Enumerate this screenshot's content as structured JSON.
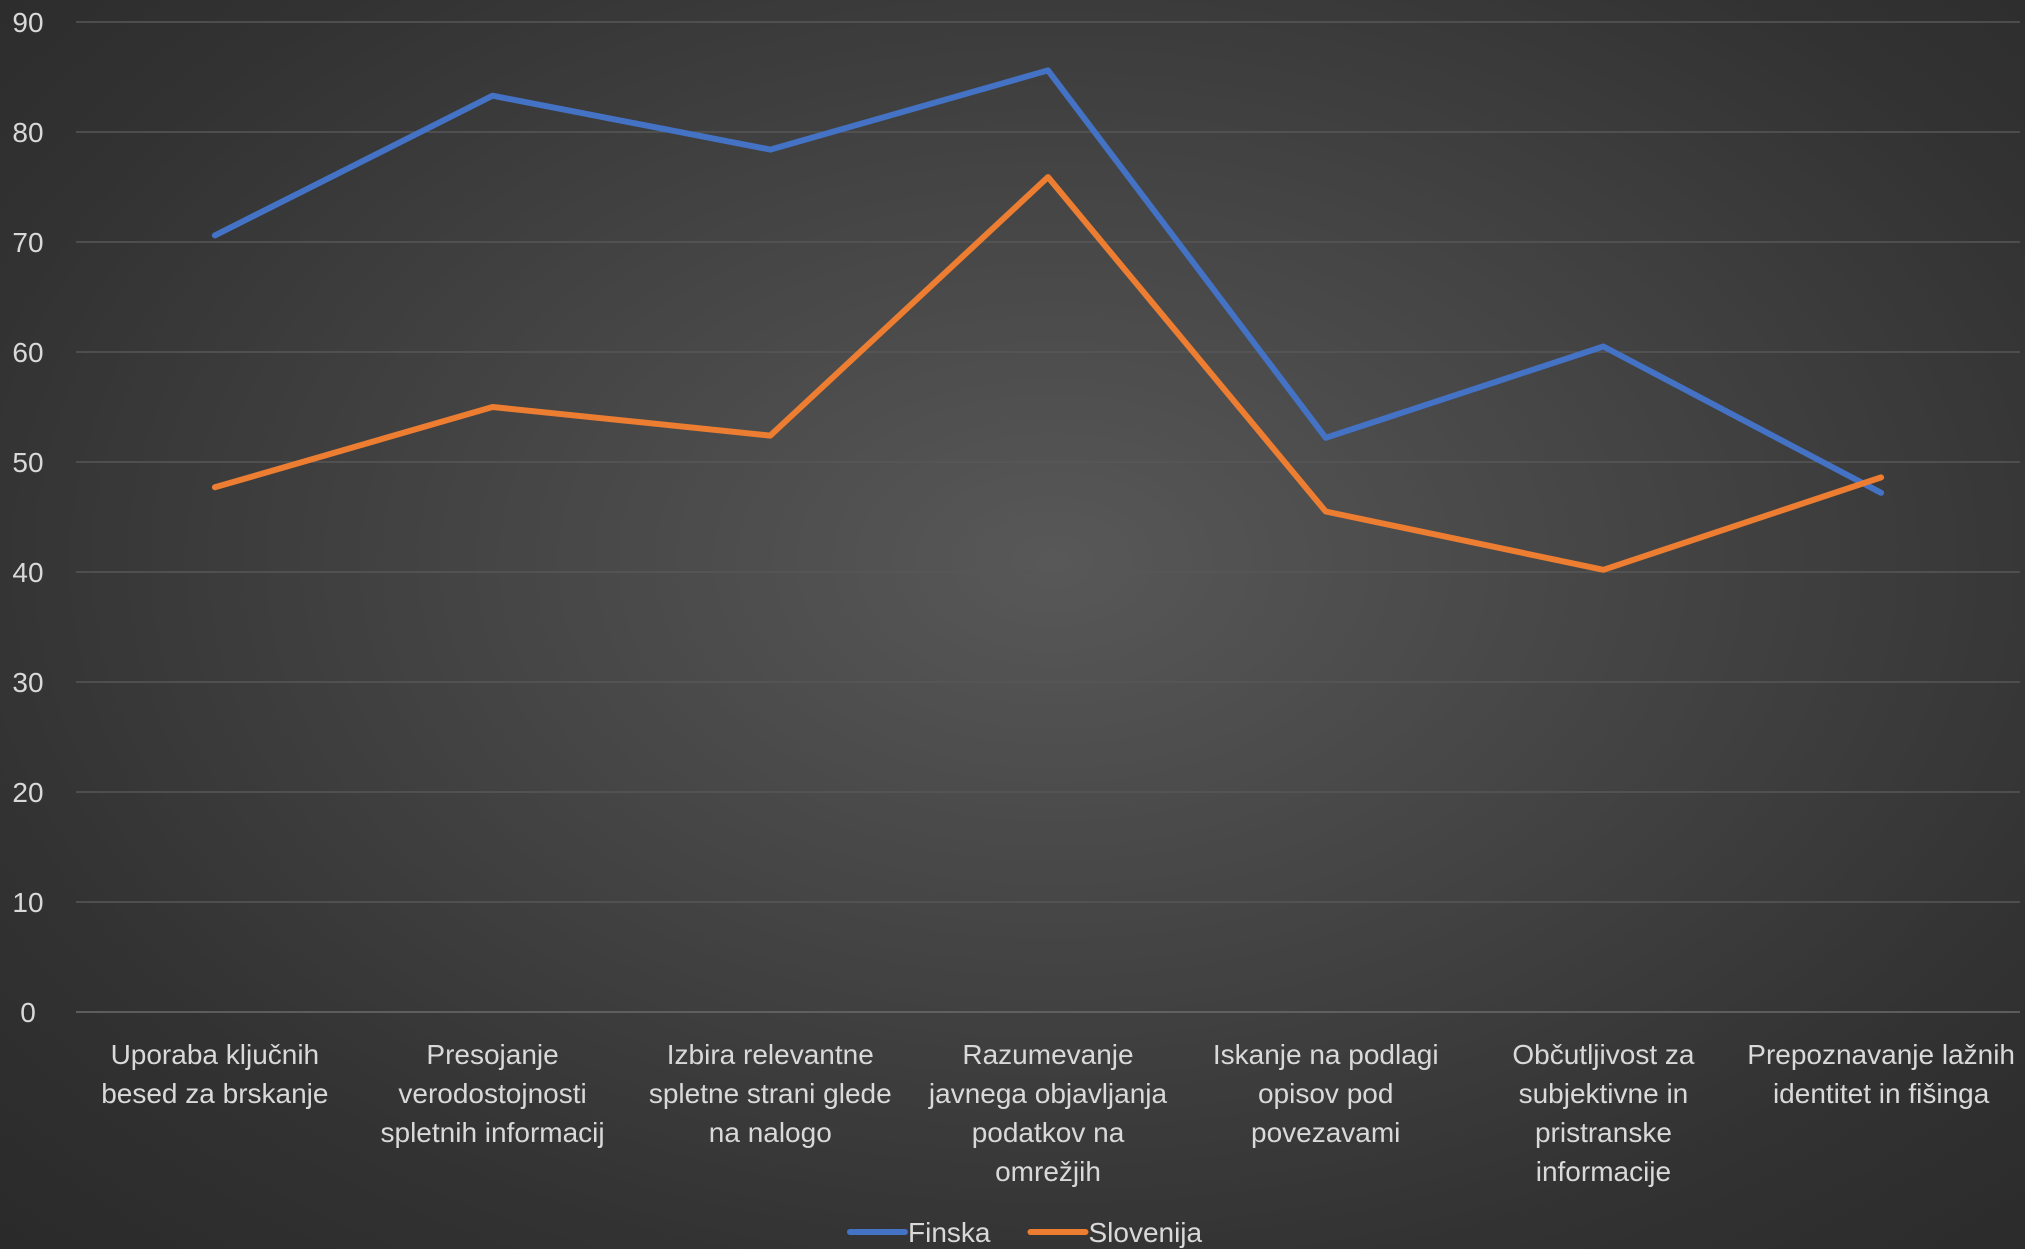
{
  "chart_data": {
    "type": "line",
    "title": "",
    "xlabel": "",
    "ylabel": "",
    "ylim": [
      0,
      90
    ],
    "ytick_step": 10,
    "grid": true,
    "legend_position": "bottom",
    "categories": [
      [
        "Uporaba ključnih",
        "besed za brskanje"
      ],
      [
        "Presojanje",
        "verodostojnosti",
        "spletnih informacij"
      ],
      [
        "Izbira relevantne",
        "spletne strani glede",
        "na nalogo"
      ],
      [
        "Razumevanje",
        "javnega objavljanja",
        "podatkov na",
        "omrežjih"
      ],
      [
        "Iskanje na podlagi",
        "opisov pod",
        "povezavami"
      ],
      [
        "Občutljivost za",
        "subjektivne in",
        "pristranske",
        "informacije"
      ],
      [
        "Prepoznavanje lažnih",
        "identitet in fišinga"
      ]
    ],
    "series": [
      {
        "name": "Finska",
        "color": "#4472c4",
        "values": [
          70.6,
          83.3,
          78.4,
          85.6,
          52.2,
          60.5,
          47.2
        ]
      },
      {
        "name": "Slovenija",
        "color": "#ed7d31",
        "values": [
          47.7,
          55.0,
          52.4,
          75.9,
          45.5,
          40.2,
          48.6
        ]
      }
    ]
  }
}
